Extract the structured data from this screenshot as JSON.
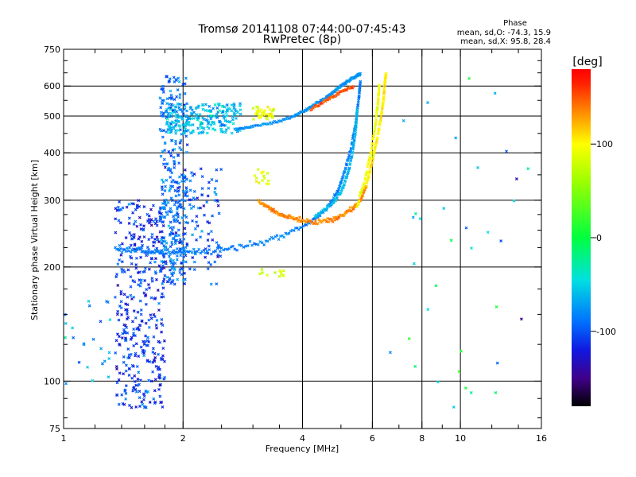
{
  "chart_data": {
    "type": "scatter",
    "title_line1": "Tromsø 20141108 07:44:00-07:45:43",
    "title_line2": "RwPretec (8p)",
    "xlabel": "Frequency [MHz]",
    "ylabel": "Stationary phase Virtual Height [km]",
    "xscale": "log",
    "yscale": "log",
    "xlim": [
      1,
      16
    ],
    "ylim": [
      75,
      750
    ],
    "xticks": [
      1,
      2,
      4,
      6,
      8,
      10,
      16
    ],
    "yticks": [
      75,
      100,
      200,
      300,
      400,
      500,
      600,
      750
    ],
    "x_minor_ticks": [
      1.2,
      1.4,
      1.6,
      1.8,
      2.5,
      3,
      3.5,
      5,
      7,
      9,
      12,
      14
    ],
    "y_minor_ticks": [
      80,
      90,
      125,
      150,
      175,
      225,
      250,
      275,
      350,
      450,
      550,
      650,
      700
    ],
    "vertical_gridlines_at": [
      2,
      4,
      6,
      8,
      10
    ],
    "horizontal_gridlines_at": [
      100,
      200,
      300,
      400,
      500,
      600
    ],
    "info": {
      "header": "Phase",
      "line1": "mean, sd,O: -74.3, 15.9",
      "line2": "mean, sd,X:  95.8, 28.4"
    },
    "colorbar": {
      "unit": "[deg]",
      "range": [
        -180,
        180
      ],
      "ticks": [
        {
          "value": 100,
          "label": "100"
        },
        {
          "value": 0,
          "label": "0"
        },
        {
          "value": -100,
          "label": "-100"
        }
      ],
      "stops": [
        {
          "value": -180,
          "color": "#000000"
        },
        {
          "value": -150,
          "color": "#40008a"
        },
        {
          "value": -120,
          "color": "#1018e0"
        },
        {
          "value": -90,
          "color": "#0070ff"
        },
        {
          "value": -45,
          "color": "#00e0e0"
        },
        {
          "value": 0,
          "color": "#00ff40"
        },
        {
          "value": 60,
          "color": "#9cff00"
        },
        {
          "value": 100,
          "color": "#ffff00"
        },
        {
          "value": 130,
          "color": "#ff9900"
        },
        {
          "value": 165,
          "color": "#ff2000"
        },
        {
          "value": 180,
          "color": "#ff0000"
        }
      ]
    },
    "series": [
      {
        "name": "F-layer trace (O-mode, lower branch)",
        "phase_deg": -85,
        "spread_km": 3,
        "x": [
          1.35,
          1.5,
          1.65,
          1.8,
          2.0,
          2.3,
          2.7,
          3.2,
          3.7,
          4.2,
          4.6,
          4.9,
          5.1,
          5.3,
          5.45,
          5.55,
          5.6
        ],
        "y": [
          222,
          221,
          220,
          219,
          219,
          221,
          225,
          233,
          245,
          262,
          285,
          315,
          355,
          410,
          480,
          560,
          620
        ]
      },
      {
        "name": "F-layer trace (O-mode, second branch)",
        "phase_deg": -60,
        "spread_km": 3,
        "x": [
          4.3,
          4.7,
          5.0,
          5.2,
          5.35,
          5.45,
          5.5
        ],
        "y": [
          272,
          290,
          315,
          350,
          400,
          460,
          530
        ]
      },
      {
        "name": "F-layer trace (O-mode, upper arc)",
        "phase_deg": -75,
        "spread_km": 3,
        "x": [
          2.7,
          3.0,
          3.4,
          3.8,
          4.1,
          4.4,
          4.7,
          4.9,
          5.1,
          5.3,
          5.5,
          5.6
        ],
        "y": [
          460,
          470,
          480,
          500,
          520,
          545,
          570,
          590,
          610,
          625,
          640,
          648
        ]
      },
      {
        "name": "X-mode trace (lower)",
        "phase_deg": 135,
        "spread_km": 3,
        "x": [
          3.1,
          3.3,
          3.5,
          3.7,
          4.0,
          4.4,
          4.8,
          5.1,
          5.4,
          5.6,
          5.8
        ],
        "y": [
          298,
          285,
          276,
          270,
          265,
          263,
          268,
          275,
          288,
          300,
          330
        ]
      },
      {
        "name": "X-mode trace (steep)",
        "phase_deg": 105,
        "spread_km": 4,
        "x": [
          5.8,
          6.0,
          6.15,
          6.3,
          6.4,
          6.45,
          6.5
        ],
        "y": [
          330,
          380,
          430,
          490,
          550,
          610,
          650
        ]
      },
      {
        "name": "X-mode trace (inner)",
        "phase_deg": 95,
        "spread_km": 4,
        "x": [
          5.5,
          5.75,
          5.95,
          6.1,
          6.2,
          6.25
        ],
        "y": [
          290,
          340,
          400,
          470,
          540,
          610
        ]
      },
      {
        "name": "X-mode trace (upper)",
        "phase_deg": 150,
        "spread_km": 4,
        "x": [
          4.2,
          4.6,
          5.0,
          5.4
        ],
        "y": [
          520,
          550,
          580,
          600
        ]
      }
    ],
    "clusters": [
      {
        "name": "E/F1 scatter column",
        "phase_deg": -110,
        "phase_sd": 25,
        "x_range": [
          1.35,
          1.8
        ],
        "y_range": [
          85,
          300
        ],
        "count": 380
      },
      {
        "name": "spread-F column",
        "phase_deg": -90,
        "phase_sd": 25,
        "x_range": [
          1.75,
          2.05
        ],
        "y_range": [
          180,
          640
        ],
        "count": 320
      },
      {
        "name": "spread-F upper band",
        "phase_deg": -60,
        "phase_sd": 25,
        "x_range": [
          1.8,
          2.8
        ],
        "y_range": [
          450,
          540
        ],
        "count": 220
      },
      {
        "name": "mid column",
        "phase_deg": -100,
        "phase_sd": 30,
        "x_range": [
          2.0,
          2.5
        ],
        "y_range": [
          180,
          380
        ],
        "count": 90
      },
      {
        "name": "low-frequency echoes",
        "phase_deg": -70,
        "phase_sd": 30,
        "x_range": [
          1.0,
          1.35
        ],
        "y_range": [
          95,
          170
        ],
        "count": 25
      },
      {
        "name": "3 MHz upper cluster",
        "phase_deg": 90,
        "phase_sd": 15,
        "x_range": [
          3.0,
          3.4
        ],
        "y_range": [
          490,
          530
        ],
        "count": 40
      },
      {
        "name": "3 MHz mid cluster",
        "phase_deg": 85,
        "phase_sd": 15,
        "x_range": [
          3.0,
          3.3
        ],
        "y_range": [
          330,
          370
        ],
        "count": 15
      },
      {
        "name": "3 MHz low cluster",
        "phase_deg": 80,
        "phase_sd": 15,
        "x_range": [
          3.0,
          3.6
        ],
        "y_range": [
          188,
          198
        ],
        "count": 12
      },
      {
        "name": "isolated high-frequency points",
        "phase_deg": -40,
        "phase_sd": 90,
        "x_range": [
          6.5,
          15
        ],
        "y_range": [
          80,
          650
        ],
        "count": 35
      }
    ]
  }
}
